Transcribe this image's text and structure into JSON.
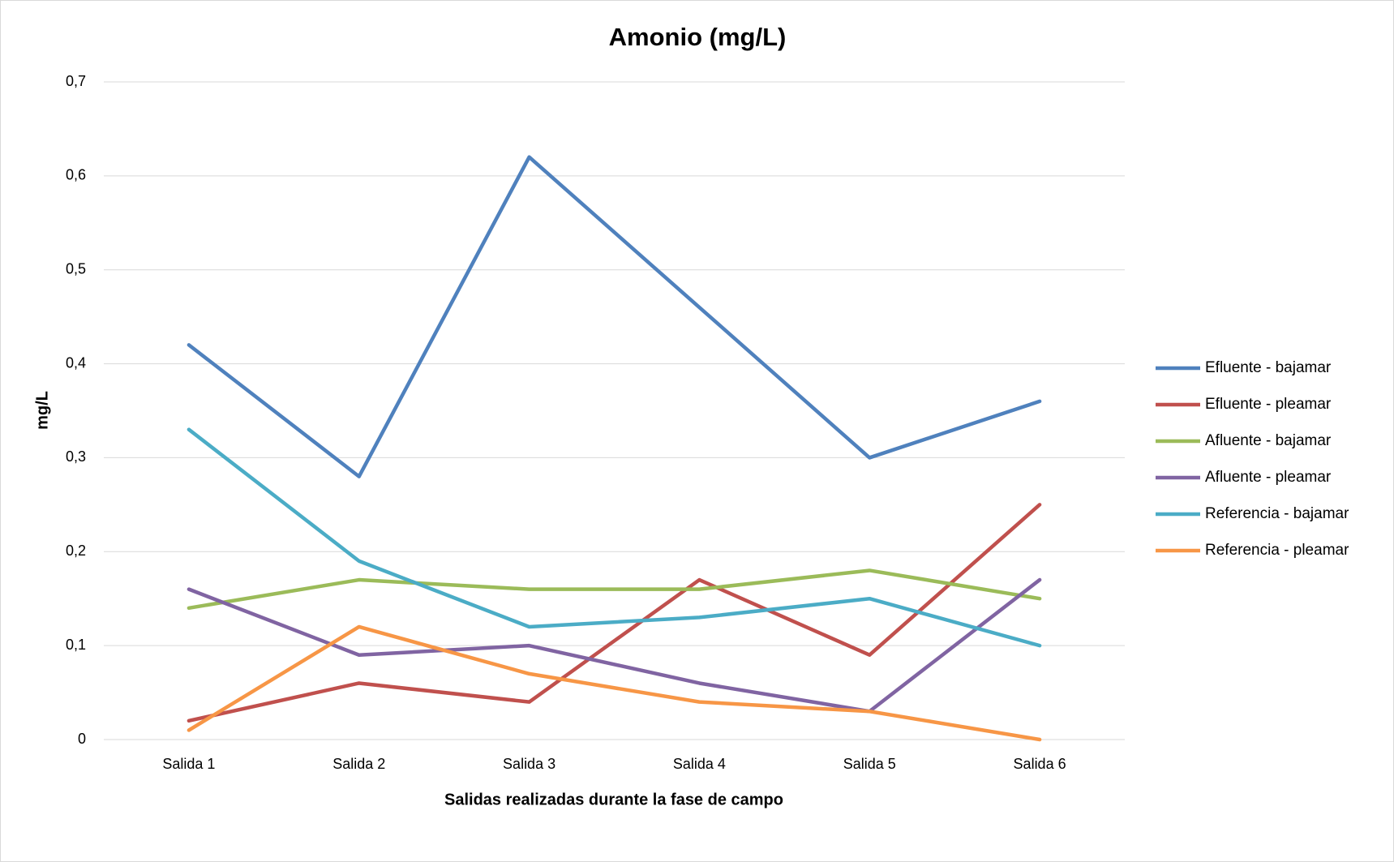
{
  "chart_data": {
    "type": "line",
    "title": "Amonio (mg/L)",
    "x_label": "Salidas realizadas durante la fase de campo",
    "y_label": "mg/L",
    "categories": [
      "Salida 1",
      "Salida 2",
      "Salida 3",
      "Salida 4",
      "Salida 5",
      "Salida 6"
    ],
    "series": [
      {
        "name": "Efluente - bajamar",
        "color": "#4f81bd",
        "values": [
          0.42,
          0.28,
          0.62,
          0.46,
          0.3,
          0.36
        ]
      },
      {
        "name": "Efluente - pleamar",
        "color": "#c0504d",
        "values": [
          0.02,
          0.06,
          0.04,
          0.17,
          0.09,
          0.25
        ]
      },
      {
        "name": "Afluente - bajamar",
        "color": "#9bbb59",
        "values": [
          0.14,
          0.17,
          0.16,
          0.16,
          0.18,
          0.15
        ]
      },
      {
        "name": "Afluente - pleamar",
        "color": "#8064a2",
        "values": [
          0.16,
          0.09,
          0.1,
          0.06,
          0.03,
          0.17
        ]
      },
      {
        "name": "Referencia - bajamar",
        "color": "#4bacc6",
        "values": [
          0.33,
          0.19,
          0.12,
          0.13,
          0.15,
          0.1
        ]
      },
      {
        "name": "Referencia - pleamar",
        "color": "#f79646",
        "values": [
          0.01,
          0.12,
          0.07,
          0.04,
          0.03,
          0.0
        ]
      }
    ],
    "ylim": [
      0,
      0.7
    ],
    "yticks": [
      0,
      {
        "value": 0.1,
        "label": "0,1"
      },
      {
        "value": 0.2,
        "label": "0,2"
      },
      {
        "value": 0.3,
        "label": "0,3"
      },
      {
        "value": 0.4,
        "label": "0,4"
      },
      {
        "value": 0.5,
        "label": "0,5"
      },
      {
        "value": 0.6,
        "label": "0,6"
      },
      {
        "value": 0.7,
        "label": "0,7"
      }
    ],
    "grid": true,
    "legend": "right"
  }
}
